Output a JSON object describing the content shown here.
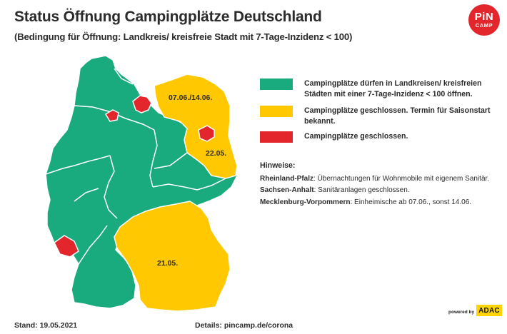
{
  "title": "Status Öffnung Campingplätze Deutschland",
  "subtitle": "(Bedingung für Öffnung: Landkreis/ kreisfreie Stadt mit 7-Tage-Inzidenz < 100)",
  "logo": {
    "line1": "PiN",
    "line2": "CAMP"
  },
  "colors": {
    "green": "#19ab7d",
    "yellow": "#ffc800",
    "red": "#e2262b",
    "border": "#ffffff"
  },
  "legend": [
    {
      "color": "#19ab7d",
      "text": "Campingplätze dürfen in Landkreisen/ kreisfreien Städten mit einer 7-Tage-Inzidenz < 100 öffnen."
    },
    {
      "color": "#ffc800",
      "text": "Campingplätze geschlossen. Termin für Saisonstart bekannt."
    },
    {
      "color": "#e2262b",
      "text": "Campingplätze geschlossen."
    }
  ],
  "map": {
    "labels": {
      "mv": "07.06./14.06.",
      "bb": "22.05.",
      "by": "21.05."
    }
  },
  "notes": {
    "heading": "Hinweise:",
    "items": [
      {
        "state": "Rheinland-Pfalz",
        "text": ": Übernachtungen für Wohnmobile mit eigenem Sanitär."
      },
      {
        "state": "Sachsen-Anhalt",
        "text": ": Sanitäranlagen geschlossen."
      },
      {
        "state": "Mecklenburg-Vorpommern",
        "text": ": Einheimische ab 07.06., sonst 14.06."
      }
    ]
  },
  "footer": {
    "stand": "Stand: 19.05.2021",
    "details": "Details: pincamp.de/corona",
    "powered": "powered by",
    "adac": "ADAC"
  }
}
